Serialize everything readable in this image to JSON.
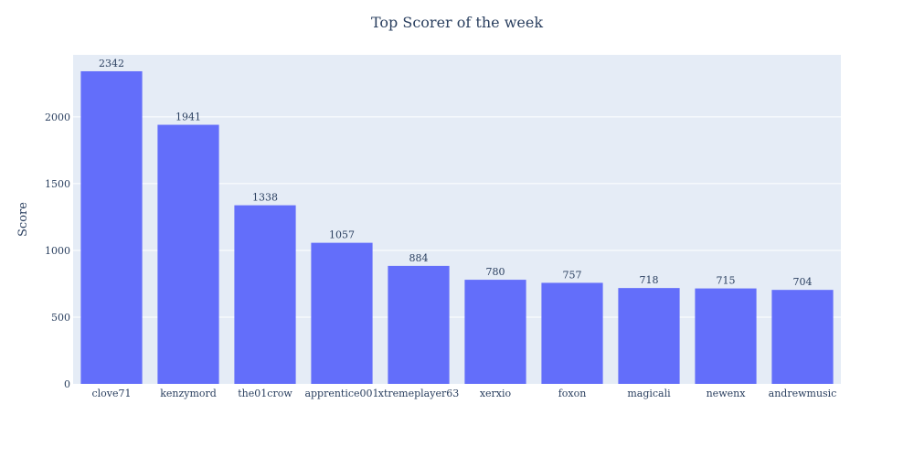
{
  "chart_data": {
    "type": "bar",
    "title": "Top Scorer of the week",
    "xlabel": "",
    "ylabel": "Score",
    "categories": [
      "clove71",
      "kenzymord",
      "the01crow",
      "apprentice001",
      "xtremeplayer63",
      "xerxio",
      "foxon",
      "magicali",
      "newenx",
      "andrewmusic"
    ],
    "values": [
      2342,
      1941,
      1338,
      1057,
      884,
      780,
      757,
      718,
      715,
      704
    ],
    "ylim": [
      0,
      2465
    ],
    "yticks": [
      0,
      500,
      1000,
      1500,
      2000
    ],
    "grid": true,
    "bar_color": "#636efa",
    "plot_background": "#e5ecf6",
    "text_color": "#2a3f5f"
  }
}
